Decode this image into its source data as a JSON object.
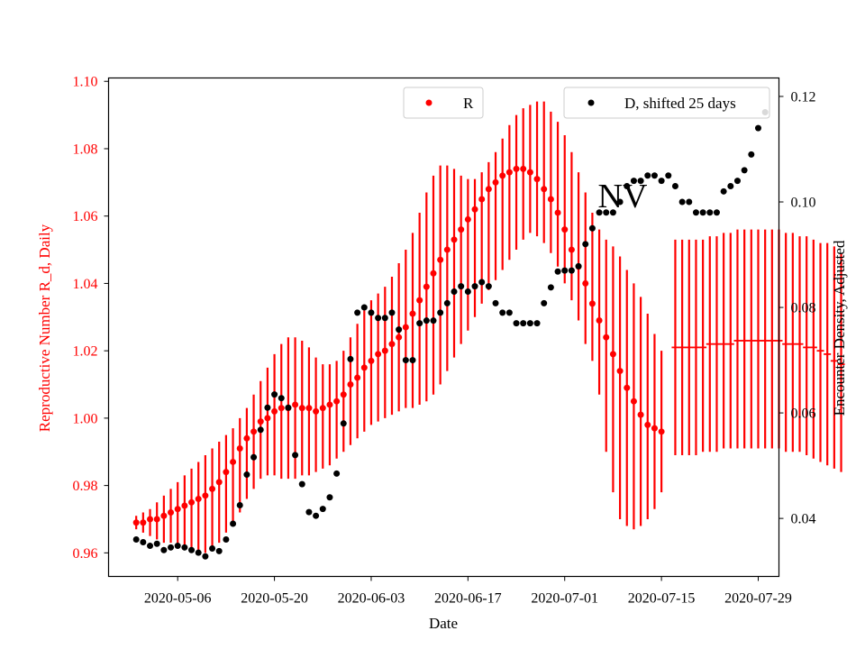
{
  "chart_data": {
    "type": "scatter",
    "annotation": "NV",
    "xlabel": "Date",
    "ylabel_left": "Reproductive Number R_d, Daily",
    "ylabel_right": "Encounter Density, Adjusted",
    "x_ticks": [
      "2020-05-06",
      "2020-05-20",
      "2020-06-03",
      "2020-06-17",
      "2020-07-01",
      "2020-07-15",
      "2020-07-29"
    ],
    "y_left_ticks": [
      "0.96",
      "0.98",
      "1.00",
      "1.02",
      "1.04",
      "1.06",
      "1.08",
      "1.10"
    ],
    "y_right_ticks": [
      "0.04",
      "0.06",
      "0.08",
      "0.10",
      "0.12"
    ],
    "x_range": [
      "2020-04-26",
      "2020-08-01"
    ],
    "y_left_range": [
      0.953,
      1.101
    ],
    "y_right_range": [
      0.029,
      0.1235
    ],
    "grid": false,
    "left_axis_color": "#ff0000",
    "series": [
      {
        "name": "R",
        "axis": "left",
        "color": "#ff0000",
        "legend_position": "top-center",
        "marker": "dot",
        "start_date": "2020-04-30",
        "values": [
          0.969,
          0.969,
          0.97,
          0.97,
          0.971,
          0.972,
          0.973,
          0.974,
          0.975,
          0.976,
          0.977,
          0.979,
          0.981,
          0.984,
          0.987,
          0.991,
          0.994,
          0.996,
          0.999,
          1.0,
          1.002,
          1.003,
          1.003,
          1.004,
          1.003,
          1.003,
          1.002,
          1.003,
          1.004,
          1.005,
          1.007,
          1.01,
          1.012,
          1.015,
          1.017,
          1.019,
          1.02,
          1.022,
          1.024,
          1.027,
          1.031,
          1.035,
          1.039,
          1.043,
          1.047,
          1.05,
          1.053,
          1.056,
          1.059,
          1.062,
          1.065,
          1.068,
          1.07,
          1.072,
          1.073,
          1.074,
          1.074,
          1.073,
          1.071,
          1.068,
          1.065,
          1.061,
          1.056,
          1.05,
          1.045,
          1.04,
          1.034,
          1.029,
          1.024,
          1.019,
          1.014,
          1.009,
          1.005,
          1.001,
          0.998,
          0.997,
          0.996
        ],
        "lower": [
          0.967,
          0.966,
          0.965,
          0.964,
          0.963,
          0.963,
          0.962,
          0.961,
          0.961,
          0.96,
          0.96,
          0.961,
          0.963,
          0.966,
          0.969,
          0.972,
          0.976,
          0.979,
          0.982,
          0.983,
          0.983,
          0.982,
          0.982,
          0.982,
          0.983,
          0.983,
          0.984,
          0.985,
          0.986,
          0.988,
          0.99,
          0.992,
          0.994,
          0.996,
          0.998,
          0.999,
          1.0,
          1.001,
          1.002,
          1.003,
          1.003,
          1.004,
          1.005,
          1.007,
          1.01,
          1.014,
          1.018,
          1.022,
          1.026,
          1.03,
          1.034,
          1.038,
          1.041,
          1.044,
          1.047,
          1.05,
          1.053,
          1.055,
          1.054,
          1.052,
          1.049,
          1.045,
          1.04,
          1.035,
          1.029,
          1.022,
          1.017,
          1.007,
          0.99,
          0.978,
          0.97,
          0.968,
          0.967,
          0.968,
          0.97,
          0.973,
          0.978
        ],
        "upper": [
          0.971,
          0.972,
          0.973,
          0.975,
          0.977,
          0.979,
          0.981,
          0.983,
          0.985,
          0.987,
          0.989,
          0.991,
          0.993,
          0.995,
          0.997,
          1.0,
          1.003,
          1.007,
          1.011,
          1.015,
          1.019,
          1.022,
          1.024,
          1.024,
          1.023,
          1.021,
          1.018,
          1.016,
          1.016,
          1.017,
          1.02,
          1.024,
          1.028,
          1.032,
          1.035,
          1.037,
          1.039,
          1.042,
          1.046,
          1.05,
          1.055,
          1.061,
          1.067,
          1.072,
          1.075,
          1.075,
          1.074,
          1.072,
          1.071,
          1.071,
          1.073,
          1.076,
          1.079,
          1.083,
          1.087,
          1.09,
          1.092,
          1.093,
          1.094,
          1.094,
          1.091,
          1.088,
          1.084,
          1.079,
          1.073,
          1.067,
          1.061,
          1.056,
          1.053,
          1.051,
          1.048,
          1.044,
          1.04,
          1.036,
          1.031,
          1.025,
          1.02
        ]
      },
      {
        "name": "",
        "axis": "left",
        "color": "#ff0000",
        "marker": "hline",
        "start_date": "2020-07-17",
        "values": [
          1.021,
          1.021,
          1.021,
          1.021,
          1.021,
          1.022,
          1.022,
          1.022,
          1.022,
          1.023,
          1.023,
          1.023,
          1.023,
          1.023,
          1.023,
          1.023,
          1.022,
          1.022,
          1.022,
          1.021,
          1.021,
          1.02,
          1.019,
          1.017,
          1.016
        ],
        "lower": [
          0.989,
          0.989,
          0.989,
          0.989,
          0.99,
          0.99,
          0.99,
          0.991,
          0.991,
          0.991,
          0.991,
          0.991,
          0.991,
          0.991,
          0.991,
          0.991,
          0.99,
          0.99,
          0.99,
          0.989,
          0.988,
          0.987,
          0.986,
          0.985,
          0.984
        ],
        "upper": [
          1.053,
          1.053,
          1.053,
          1.053,
          1.053,
          1.054,
          1.054,
          1.055,
          1.055,
          1.056,
          1.056,
          1.056,
          1.056,
          1.056,
          1.056,
          1.056,
          1.055,
          1.055,
          1.054,
          1.054,
          1.053,
          1.052,
          1.052,
          1.051,
          1.049
        ]
      },
      {
        "name": "D, shifted 25 days",
        "axis": "right",
        "color": "#000000",
        "legend_position": "top-right",
        "marker": "dot",
        "start_date": "2020-04-30",
        "values": [
          0.036,
          0.0355,
          0.0348,
          0.0352,
          0.034,
          0.0345,
          0.0348,
          0.0345,
          0.034,
          0.0335,
          0.0328,
          0.0343,
          0.0338,
          0.036,
          0.039,
          0.0425,
          0.0483,
          0.0516,
          0.0568,
          0.061,
          0.0635,
          0.0628,
          0.061,
          0.052,
          0.0465,
          0.0412,
          0.0405,
          0.0418,
          0.044,
          0.0485,
          0.058,
          0.0702,
          0.079,
          0.08,
          0.079,
          0.078,
          0.078,
          0.079,
          0.0758,
          0.07,
          0.07,
          0.077,
          0.0775,
          0.0775,
          0.079,
          0.0808,
          0.083,
          0.084,
          0.083,
          0.084,
          0.0848,
          0.084,
          0.0808,
          0.079,
          0.079,
          0.077,
          0.077,
          0.077,
          0.077,
          0.0808,
          0.0838,
          0.0868,
          0.087,
          0.087,
          0.0878,
          0.092,
          0.095,
          0.098,
          0.098,
          0.098,
          0.1,
          0.103,
          0.104,
          0.104,
          0.105,
          0.105,
          0.104,
          0.105,
          0.103,
          0.1,
          0.1,
          0.098,
          0.098,
          0.098,
          0.098,
          0.102,
          0.103,
          0.104,
          0.106,
          0.109,
          0.114,
          0.117
        ]
      }
    ]
  }
}
